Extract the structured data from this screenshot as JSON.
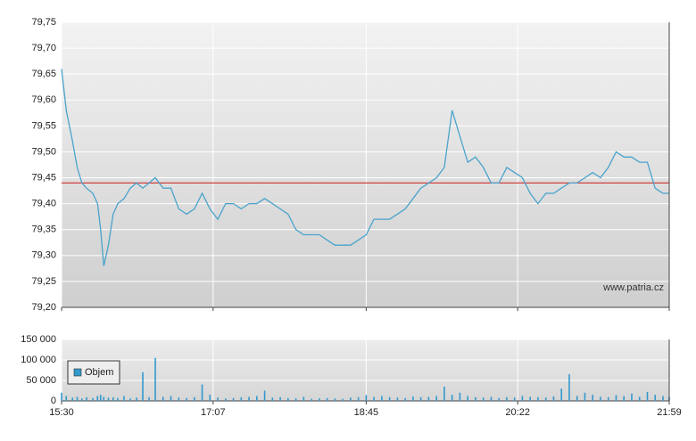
{
  "chart_data": [
    {
      "type": "line",
      "x": [
        "15:30",
        "15:33",
        "15:37",
        "15:40",
        "15:43",
        "15:46",
        "15:50",
        "15:53",
        "15:55",
        "15:57",
        "16:00",
        "16:03",
        "16:06",
        "16:10",
        "16:14",
        "16:18",
        "16:22",
        "16:26",
        "16:30",
        "16:35",
        "16:40",
        "16:45",
        "16:50",
        "16:55",
        "17:00",
        "17:05",
        "17:10",
        "17:15",
        "17:20",
        "17:25",
        "17:30",
        "17:35",
        "17:40",
        "17:45",
        "17:50",
        "17:55",
        "18:00",
        "18:05",
        "18:10",
        "18:15",
        "18:20",
        "18:25",
        "18:30",
        "18:35",
        "18:40",
        "18:45",
        "18:50",
        "18:55",
        "19:00",
        "19:05",
        "19:10",
        "19:15",
        "19:20",
        "19:25",
        "19:30",
        "19:35",
        "19:40",
        "19:45",
        "19:50",
        "19:55",
        "20:00",
        "20:05",
        "20:10",
        "20:15",
        "20:20",
        "20:25",
        "20:30",
        "20:35",
        "20:40",
        "20:45",
        "20:50",
        "20:55",
        "21:00",
        "21:05",
        "21:10",
        "21:15",
        "21:20",
        "21:25",
        "21:30",
        "21:35",
        "21:40",
        "21:45",
        "21:50",
        "21:55",
        "21:59"
      ],
      "series": [
        {
          "color": "#4aa3cc",
          "values": [
            79.66,
            79.58,
            79.52,
            79.47,
            79.44,
            79.43,
            79.42,
            79.4,
            79.35,
            79.28,
            79.32,
            79.38,
            79.4,
            79.41,
            79.43,
            79.44,
            79.43,
            79.44,
            79.45,
            79.43,
            79.43,
            79.39,
            79.38,
            79.39,
            79.42,
            79.39,
            79.37,
            79.4,
            79.4,
            79.39,
            79.4,
            79.4,
            79.41,
            79.4,
            79.39,
            79.38,
            79.35,
            79.34,
            79.34,
            79.34,
            79.33,
            79.32,
            79.32,
            79.32,
            79.33,
            79.34,
            79.37,
            79.37,
            79.37,
            79.38,
            79.39,
            79.41,
            79.43,
            79.44,
            79.45,
            79.47,
            79.58,
            79.53,
            79.48,
            79.49,
            79.47,
            79.44,
            79.44,
            79.47,
            79.46,
            79.45,
            79.42,
            79.4,
            79.42,
            79.42,
            79.43,
            79.44,
            79.44,
            79.45,
            79.46,
            79.45,
            79.47,
            79.5,
            79.49,
            79.49,
            79.48,
            79.48,
            79.43,
            79.42,
            79.42
          ]
        }
      ],
      "reference_line": {
        "value": 79.44,
        "color": "#d04040"
      },
      "xlim": [
        "15:30",
        "21:59"
      ],
      "ylim": [
        79.2,
        79.75
      ],
      "yticks": [
        {
          "value": 79.2,
          "label": "79,20"
        },
        {
          "value": 79.25,
          "label": "79,25"
        },
        {
          "value": 79.3,
          "label": "79,30"
        },
        {
          "value": 79.35,
          "label": "79,35"
        },
        {
          "value": 79.4,
          "label": "79,40"
        },
        {
          "value": 79.45,
          "label": "79,45"
        },
        {
          "value": 79.5,
          "label": "79,50"
        },
        {
          "value": 79.55,
          "label": "79,55"
        },
        {
          "value": 79.6,
          "label": "79,60"
        },
        {
          "value": 79.65,
          "label": "79,65"
        },
        {
          "value": 79.7,
          "label": "79,70"
        },
        {
          "value": 79.75,
          "label": "79,75"
        }
      ],
      "grid": true,
      "annotation": "www.patria.cz"
    },
    {
      "type": "bar",
      "x": [
        "15:30",
        "15:33",
        "15:37",
        "15:40",
        "15:43",
        "15:46",
        "15:50",
        "15:53",
        "15:55",
        "15:57",
        "16:00",
        "16:03",
        "16:06",
        "16:10",
        "16:14",
        "16:18",
        "16:22",
        "16:26",
        "16:30",
        "16:35",
        "16:40",
        "16:45",
        "16:50",
        "16:55",
        "17:00",
        "17:05",
        "17:10",
        "17:15",
        "17:20",
        "17:25",
        "17:30",
        "17:35",
        "17:40",
        "17:45",
        "17:50",
        "17:55",
        "18:00",
        "18:05",
        "18:10",
        "18:15",
        "18:20",
        "18:25",
        "18:30",
        "18:35",
        "18:40",
        "18:45",
        "18:50",
        "18:55",
        "19:00",
        "19:05",
        "19:10",
        "19:15",
        "19:20",
        "19:25",
        "19:30",
        "19:35",
        "19:40",
        "19:45",
        "19:50",
        "19:55",
        "20:00",
        "20:05",
        "20:10",
        "20:15",
        "20:20",
        "20:25",
        "20:30",
        "20:35",
        "20:40",
        "20:45",
        "20:50",
        "20:55",
        "21:00",
        "21:05",
        "21:10",
        "21:15",
        "21:20",
        "21:25",
        "21:30",
        "21:35",
        "21:40",
        "21:45",
        "21:50",
        "21:55",
        "21:59"
      ],
      "series": [
        {
          "name": "Objem",
          "color": "#3399cc",
          "values": [
            20000,
            12000,
            8000,
            10000,
            6000,
            9000,
            7000,
            12000,
            15000,
            10000,
            8000,
            9000,
            7000,
            12000,
            6000,
            8000,
            70000,
            9000,
            105000,
            10000,
            12000,
            8000,
            7000,
            9000,
            40000,
            15000,
            8000,
            6000,
            7000,
            9000,
            10000,
            12000,
            25000,
            8000,
            9000,
            7000,
            6000,
            10000,
            5000,
            6000,
            7000,
            6000,
            5000,
            8000,
            9000,
            14000,
            10000,
            12000,
            9000,
            8000,
            7000,
            11000,
            9000,
            10000,
            12000,
            35000,
            15000,
            20000,
            12000,
            9000,
            8000,
            10000,
            7000,
            9000,
            8000,
            12000,
            10000,
            9000,
            8000,
            11000,
            30000,
            65000,
            12000,
            20000,
            15000,
            10000,
            9000,
            14000,
            12000,
            18000,
            10000,
            22000,
            15000,
            12000,
            10000
          ]
        }
      ],
      "xlim": [
        "15:30",
        "21:59"
      ],
      "xticks": [
        "15:30",
        "17:07",
        "18:45",
        "20:22",
        "21:59"
      ],
      "ylim": [
        0,
        150000
      ],
      "yticks": [
        0,
        {
          "value": 50000,
          "label": "50 000"
        },
        {
          "value": 100000,
          "label": "100 000"
        },
        {
          "value": 150000,
          "label": "150 000"
        }
      ],
      "grid": true,
      "legend": "upper left"
    }
  ]
}
